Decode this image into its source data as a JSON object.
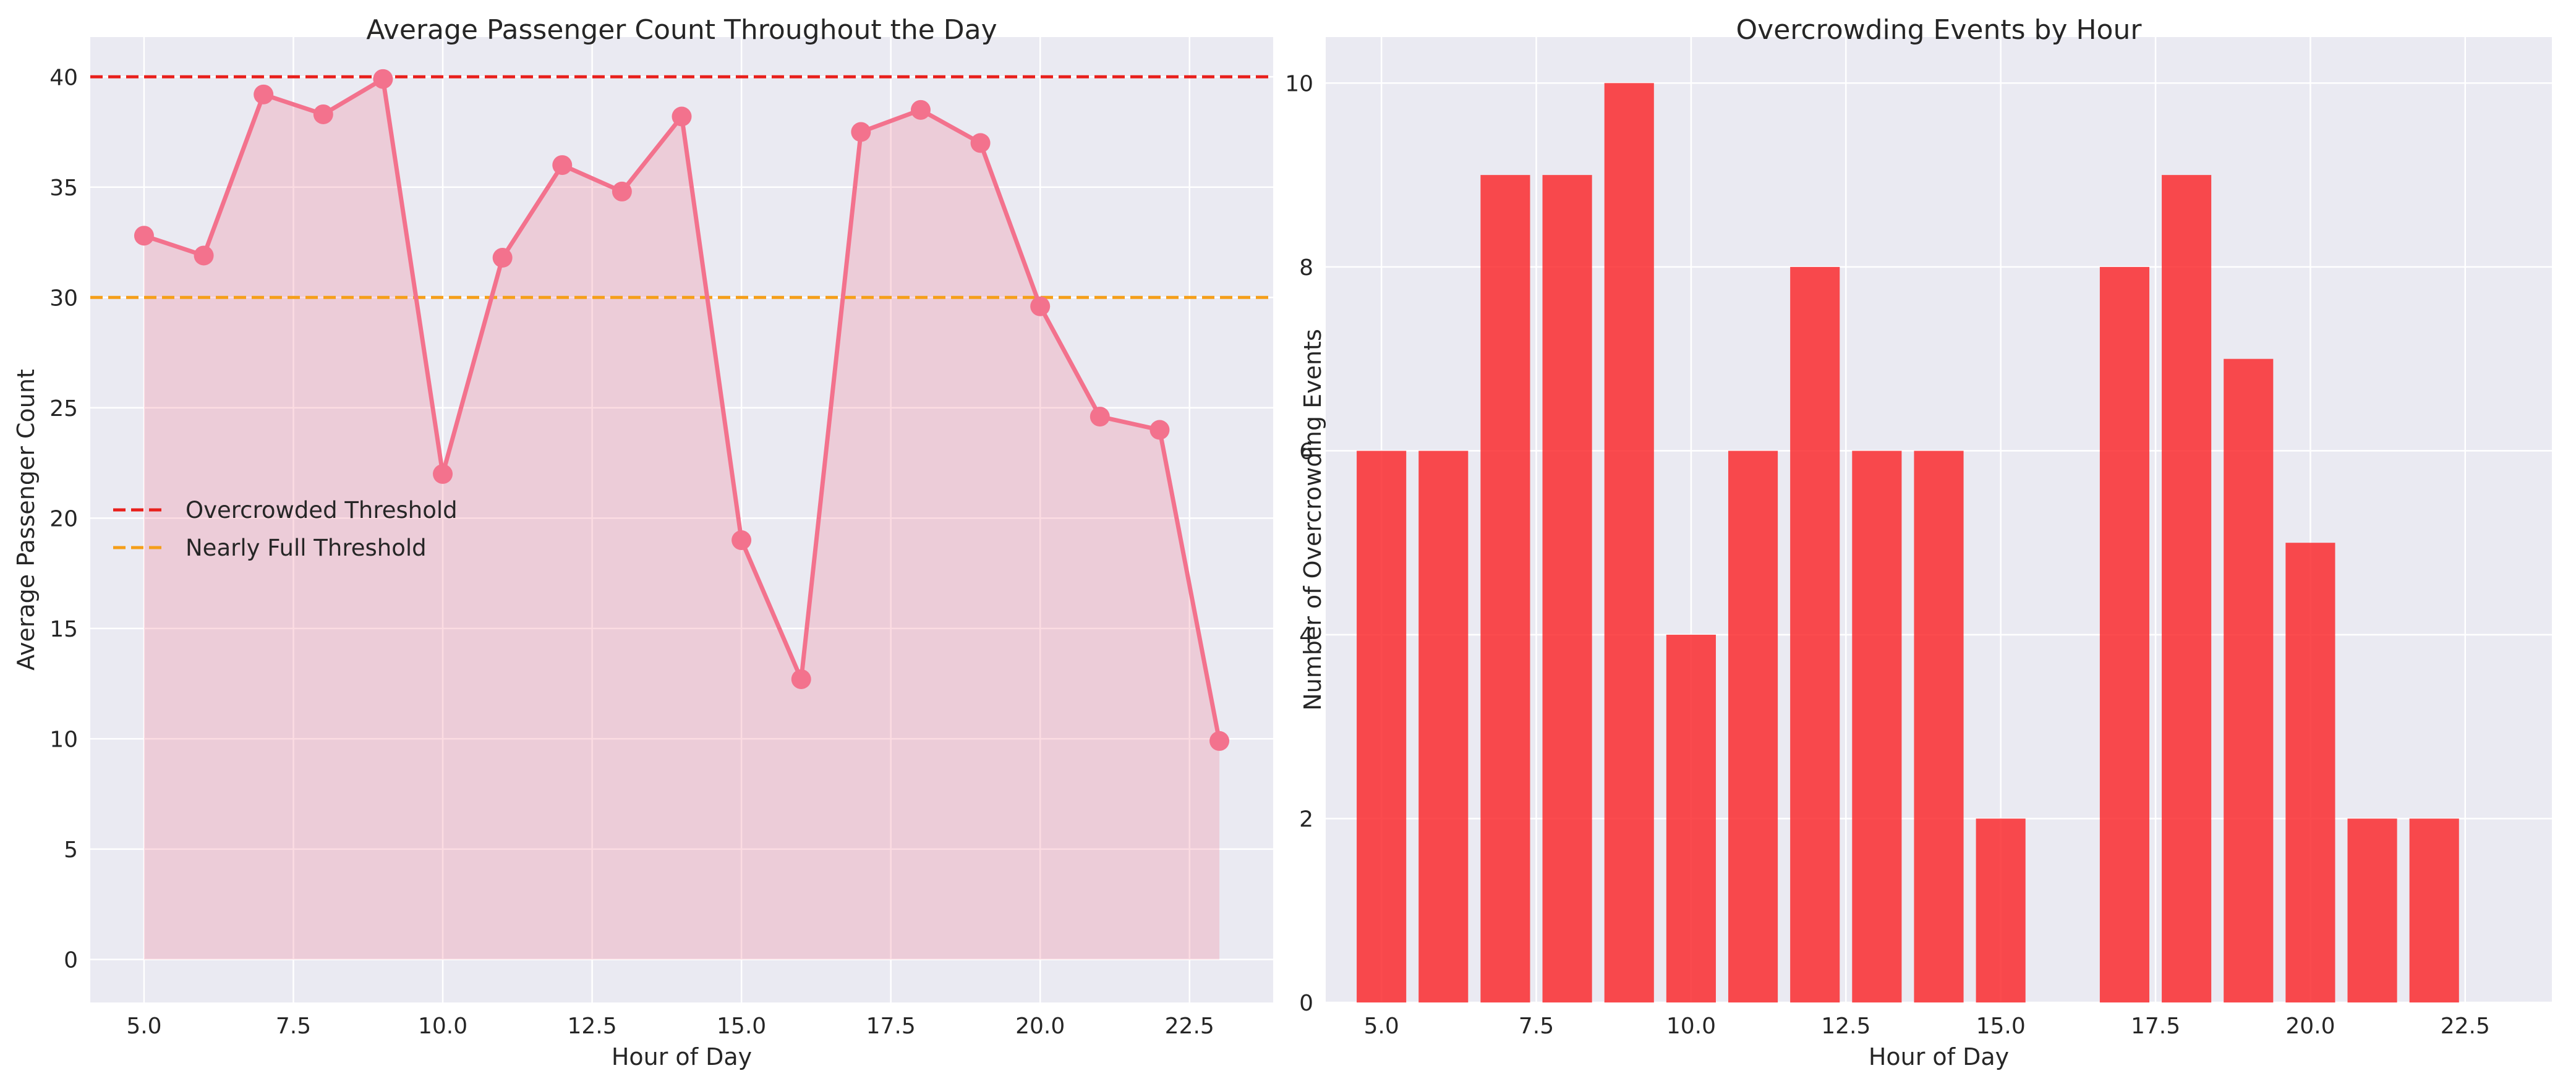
{
  "colors": {
    "line": "#f3728d",
    "fill": "#f3728d",
    "bar": "#fa2b2f",
    "overcrowded": "#e8201c",
    "nearly_full": "#f59f1a",
    "plot_bg": "#eaeaf2",
    "grid": "#ffffff"
  },
  "chart_data": [
    {
      "type": "line",
      "title": "Average Passenger Count Throughout the Day",
      "xlabel": "Hour of Day",
      "ylabel": "Average Passenger Count",
      "xlim": [
        4.1,
        23.9
      ],
      "ylim": [
        -1.95,
        41.8
      ],
      "xticks": [
        5.0,
        7.5,
        10.0,
        12.5,
        15.0,
        17.5,
        20.0,
        22.5
      ],
      "xtick_labels": [
        "5.0",
        "7.5",
        "10.0",
        "12.5",
        "15.0",
        "17.5",
        "20.0",
        "22.5"
      ],
      "yticks": [
        0,
        5,
        10,
        15,
        20,
        25,
        30,
        35,
        40
      ],
      "ytick_labels": [
        "0",
        "5",
        "10",
        "15",
        "20",
        "25",
        "30",
        "35",
        "40"
      ],
      "x": [
        5,
        6,
        7,
        8,
        9,
        10,
        11,
        12,
        13,
        14,
        15,
        16,
        17,
        18,
        19,
        20,
        21,
        22,
        23
      ],
      "values": [
        32.8,
        31.9,
        39.2,
        38.3,
        39.9,
        22.0,
        31.8,
        36.0,
        34.8,
        38.2,
        19.0,
        12.7,
        37.5,
        38.5,
        37.0,
        29.6,
        24.6,
        24.0,
        9.9
      ],
      "fill": "area-under-line",
      "grid": true,
      "legend_placement": "center-left",
      "reference_lines": [
        {
          "name": "Overcrowded Threshold",
          "value": 40,
          "style": "dashed",
          "color": "#e8201c"
        },
        {
          "name": "Nearly Full Threshold",
          "value": 30,
          "style": "dashed",
          "color": "#f59f1a"
        }
      ]
    },
    {
      "type": "bar",
      "title": "Overcrowding Events by Hour",
      "xlabel": "Hour of Day",
      "ylabel": "Number of Overcrowding Events",
      "xlim": [
        4.1,
        23.9
      ],
      "ylim": [
        0,
        10.5
      ],
      "xticks": [
        5.0,
        7.5,
        10.0,
        12.5,
        15.0,
        17.5,
        20.0,
        22.5
      ],
      "xtick_labels": [
        "5.0",
        "7.5",
        "10.0",
        "12.5",
        "15.0",
        "17.5",
        "20.0",
        "22.5"
      ],
      "yticks": [
        0,
        2,
        4,
        6,
        8,
        10
      ],
      "ytick_labels": [
        "0",
        "2",
        "4",
        "6",
        "8",
        "10"
      ],
      "x": [
        5,
        6,
        7,
        8,
        9,
        10,
        11,
        12,
        13,
        14,
        15,
        17,
        18,
        19,
        20,
        21,
        22
      ],
      "values": [
        6,
        6,
        9,
        9,
        10,
        4,
        6,
        8,
        6,
        6,
        2,
        8,
        9,
        7,
        5,
        2,
        2
      ],
      "grid": true
    }
  ]
}
